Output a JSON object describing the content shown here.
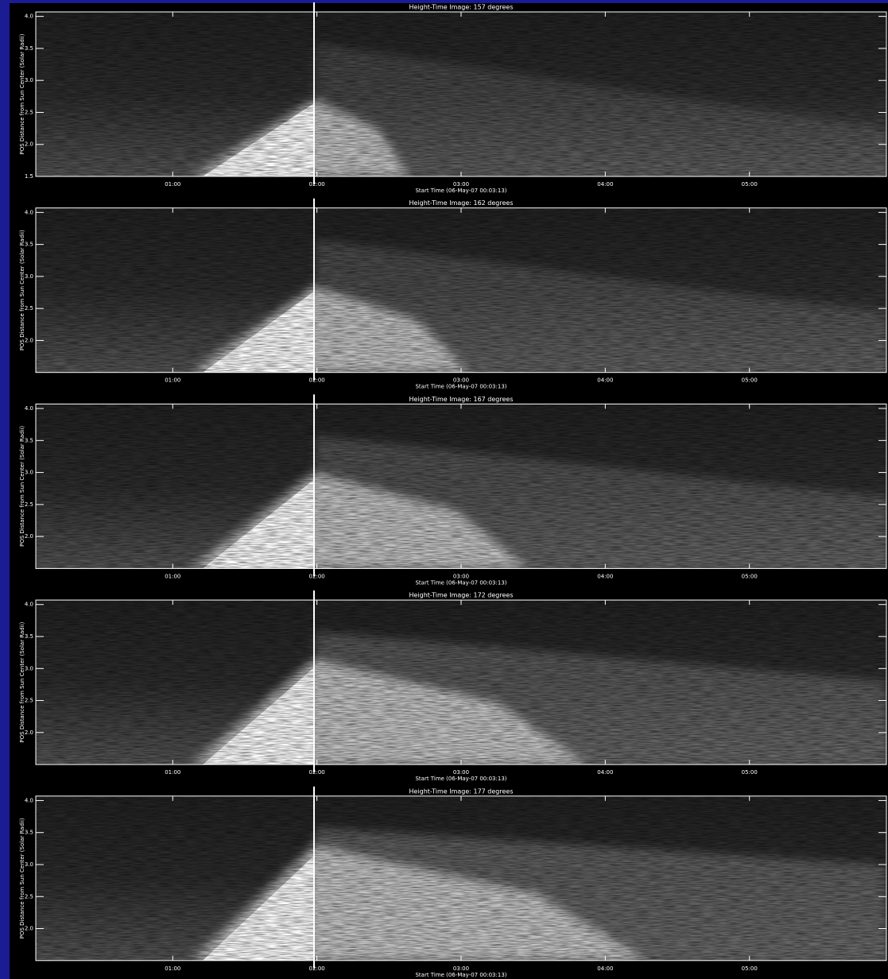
{
  "chart_data": [
    {
      "type": "image",
      "title": "Height-Time Image: 157 degrees",
      "x_label": "Start Time (06-May-07 00:03:13)",
      "y_label": "POS Distance from Sun Center (Solar Radii)",
      "xlim": [
        0.05,
        5.95
      ],
      "xticks": [
        {
          "value": 1,
          "label": "01:00"
        },
        {
          "value": 2,
          "label": "02:00"
        },
        {
          "value": 3,
          "label": "03:00"
        },
        {
          "value": 4,
          "label": "04:00"
        },
        {
          "value": 5,
          "label": "05:00"
        }
      ],
      "ylim": [
        1.5,
        4.07
      ],
      "yticks": [
        1.5,
        {
          "value": 2,
          "label": "2.0"
        },
        2.5,
        {
          "value": 3,
          "label": "3.0"
        },
        3.5,
        {
          "value": 4,
          "label": "4.0"
        }
      ]
    },
    {
      "type": "image",
      "title": "Height-Time Image: 162 degrees",
      "x_label": "Start Time (06-May-07 00:03:13)",
      "y_label": "POS Distance from Sun Center (Solar Radii)",
      "xlim": [
        0.05,
        5.95
      ],
      "xticks": [
        {
          "value": 1,
          "label": "01:00"
        },
        {
          "value": 2,
          "label": "02:00"
        },
        {
          "value": 3,
          "label": "03:00"
        },
        {
          "value": 4,
          "label": "04:00"
        },
        {
          "value": 5,
          "label": "05:00"
        }
      ],
      "ylim": [
        1.5,
        4.07
      ],
      "yticks": [
        {
          "value": 2,
          "label": "2.0"
        },
        2.5,
        {
          "value": 3,
          "label": "3.0"
        },
        3.5,
        {
          "value": 4,
          "label": "4.0"
        }
      ]
    },
    {
      "type": "image",
      "title": "Height-Time Image: 167 degrees",
      "x_label": "Start Time (06-May-07 00:03:13)",
      "y_label": "POS Distance from Sun Center (Solar Radii)",
      "xlim": [
        0.05,
        5.95
      ],
      "xticks": [
        {
          "value": 1,
          "label": "01:00"
        },
        {
          "value": 2,
          "label": "02:00"
        },
        {
          "value": 3,
          "label": "03:00"
        },
        {
          "value": 4,
          "label": "04:00"
        },
        {
          "value": 5,
          "label": "05:00"
        }
      ],
      "ylim": [
        1.5,
        4.07
      ],
      "yticks": [
        {
          "value": 2,
          "label": "2.0"
        },
        2.5,
        {
          "value": 3,
          "label": "3.0"
        },
        3.5,
        {
          "value": 4,
          "label": "4.0"
        }
      ]
    },
    {
      "type": "image",
      "title": "Height-Time Image: 172 degrees",
      "x_label": "Start Time (06-May-07 00:03:13)",
      "y_label": "POS Distance from Sun Center (Solar Radii)",
      "xlim": [
        0.05,
        5.95
      ],
      "xticks": [
        {
          "value": 1,
          "label": "01:00"
        },
        {
          "value": 2,
          "label": "02:00"
        },
        {
          "value": 3,
          "label": "03:00"
        },
        {
          "value": 4,
          "label": "04:00"
        },
        {
          "value": 5,
          "label": "05:00"
        }
      ],
      "ylim": [
        1.5,
        4.07
      ],
      "yticks": [
        {
          "value": 2,
          "label": "2.0"
        },
        2.5,
        {
          "value": 3,
          "label": "3.0"
        },
        3.5,
        {
          "value": 4,
          "label": "4.0"
        }
      ]
    },
    {
      "type": "image",
      "title": "Height-Time Image: 177 degrees",
      "x_label": "Start Time (06-May-07 00:03:13)",
      "y_label": "POS Distance from Sun Center (Solar Radii)",
      "xlim": [
        0.05,
        5.95
      ],
      "xticks": [
        {
          "value": 1,
          "label": "01:00"
        },
        {
          "value": 2,
          "label": "02:00"
        },
        {
          "value": 3,
          "label": "03:00"
        },
        {
          "value": 4,
          "label": "04:00"
        },
        {
          "value": 5,
          "label": "05:00"
        }
      ],
      "ylim": [
        1.5,
        4.07
      ],
      "yticks": [
        {
          "value": 2,
          "label": "2.0"
        },
        2.5,
        {
          "value": 3,
          "label": "3.0"
        },
        3.5,
        {
          "value": 4,
          "label": "4.0"
        }
      ]
    }
  ]
}
